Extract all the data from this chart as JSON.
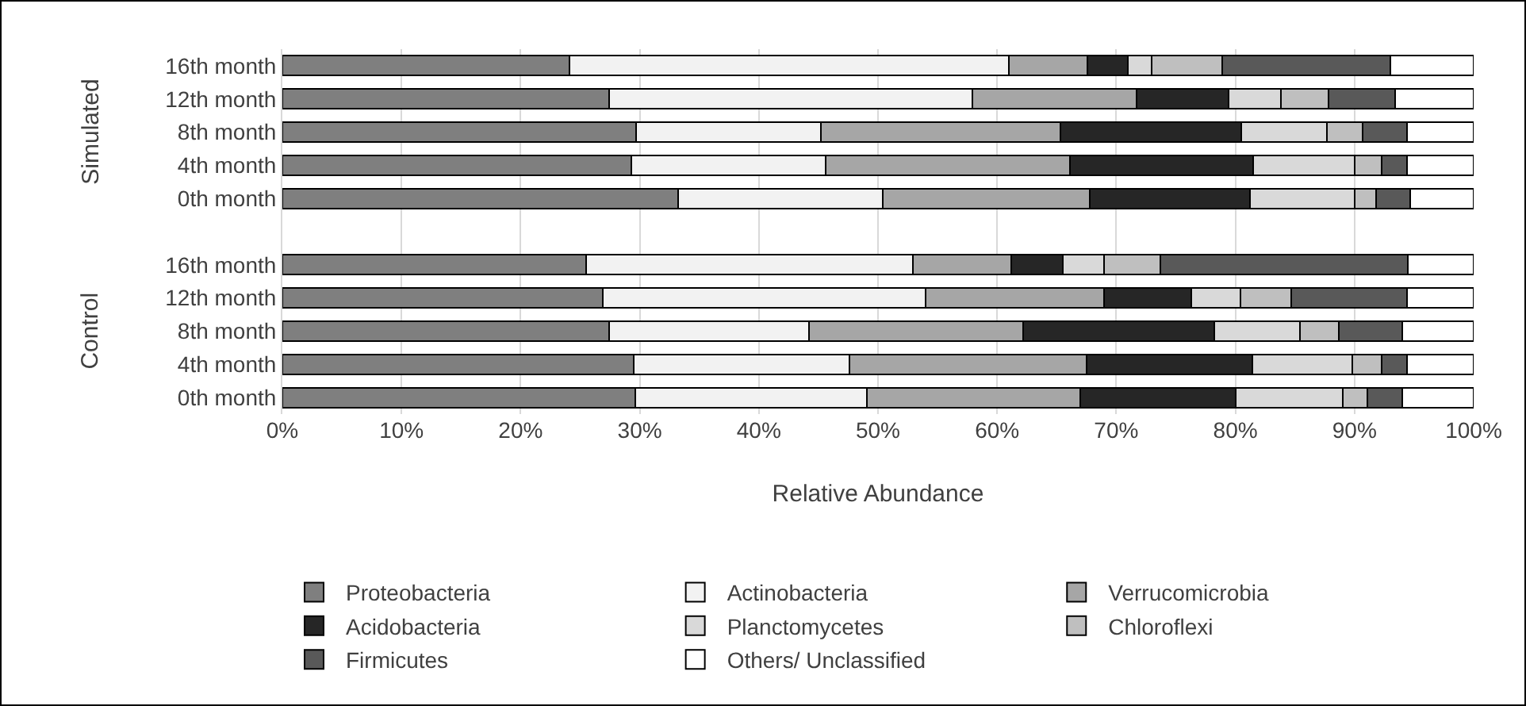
{
  "chart_data": {
    "type": "bar",
    "orientation": "horizontal",
    "stacked": true,
    "categories": [
      "16th month",
      "12th month",
      "8th month",
      "4th month",
      "0th month",
      null,
      "16th month",
      "12th month",
      "8th month",
      "4th month",
      "0th month"
    ],
    "series": [
      {
        "name": "Proteobacteria",
        "color": "#7f7f7f",
        "values": [
          24.1,
          27.4,
          29.7,
          29.3,
          33.2,
          null,
          25.5,
          26.9,
          27.4,
          29.5,
          29.6
        ]
      },
      {
        "name": "Actinobacteria",
        "color": "#f2f2f2",
        "values": [
          36.9,
          30.5,
          15.5,
          16.3,
          17.2,
          null,
          27.4,
          27.1,
          16.8,
          18.1,
          19.5
        ]
      },
      {
        "name": "Verrucomicrobia",
        "color": "#a6a6a6",
        "values": [
          6.6,
          13.8,
          20.1,
          20.5,
          17.4,
          null,
          8.3,
          15.0,
          18.0,
          19.9,
          17.9
        ]
      },
      {
        "name": "Acidobacteria",
        "color": "#262626",
        "values": [
          3.4,
          7.7,
          15.2,
          15.4,
          13.4,
          null,
          4.3,
          7.3,
          16.0,
          13.9,
          13.0
        ]
      },
      {
        "name": "Planctomycetes",
        "color": "#d9d9d9",
        "values": [
          2.0,
          4.4,
          7.2,
          8.5,
          8.8,
          null,
          3.5,
          4.1,
          7.2,
          8.4,
          9.0
        ]
      },
      {
        "name": "Chloroflexi",
        "color": "#bfbfbf",
        "values": [
          5.9,
          4.0,
          3.0,
          2.3,
          1.8,
          null,
          4.7,
          4.3,
          3.3,
          2.5,
          2.1
        ]
      },
      {
        "name": "Firmicutes",
        "color": "#595959",
        "values": [
          14.1,
          5.6,
          3.7,
          2.1,
          2.9,
          null,
          20.8,
          9.7,
          5.3,
          2.1,
          2.9
        ]
      },
      {
        "name": "Others/ Unclassified",
        "color": "#ffffff",
        "values": [
          7.0,
          6.6,
          5.6,
          5.6,
          5.3,
          null,
          5.5,
          5.6,
          6.0,
          5.6,
          6.0
        ]
      }
    ],
    "xlim": [
      0,
      100
    ],
    "xticks": [
      {
        "value": 0,
        "label": "0%"
      },
      {
        "value": 10,
        "label": "10%"
      },
      {
        "value": 20,
        "label": "20%"
      },
      {
        "value": 30,
        "label": "30%"
      },
      {
        "value": 40,
        "label": "40%"
      },
      {
        "value": 50,
        "label": "50%"
      },
      {
        "value": 60,
        "label": "60%"
      },
      {
        "value": 70,
        "label": "70%"
      },
      {
        "value": 80,
        "label": "80%"
      },
      {
        "value": 90,
        "label": "90%"
      },
      {
        "value": 100,
        "label": "100%"
      }
    ],
    "xlabel": "Relative Abundance",
    "annotations": [
      "Simulated",
      "Control"
    ],
    "grid": "x",
    "legend": "bottom"
  }
}
